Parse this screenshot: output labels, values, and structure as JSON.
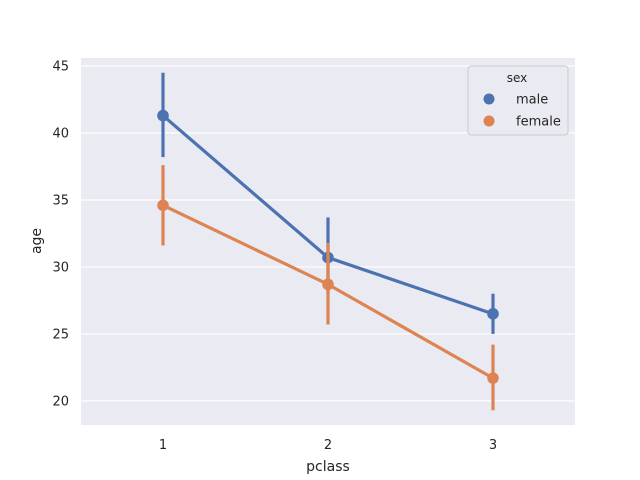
{
  "chart_data": {
    "type": "line",
    "title": "",
    "xlabel": "pclass",
    "ylabel": "age",
    "categories": [
      "1",
      "2",
      "3"
    ],
    "ylim": [
      18.2,
      45.6
    ],
    "yticks": [
      20,
      25,
      30,
      35,
      40,
      45
    ],
    "grid": true,
    "legend": {
      "title": "sex",
      "placement": "top-right"
    },
    "series": [
      {
        "name": "male",
        "color": "#4C72B0",
        "values": [
          41.3,
          30.7,
          26.5
        ],
        "ci_low": [
          38.2,
          28.0,
          25.0
        ],
        "ci_high": [
          44.5,
          33.7,
          28.0
        ]
      },
      {
        "name": "female",
        "color": "#DD8452",
        "values": [
          34.6,
          28.7,
          21.7
        ],
        "ci_low": [
          31.6,
          25.7,
          19.3
        ],
        "ci_high": [
          37.6,
          31.8,
          24.2
        ]
      }
    ]
  }
}
